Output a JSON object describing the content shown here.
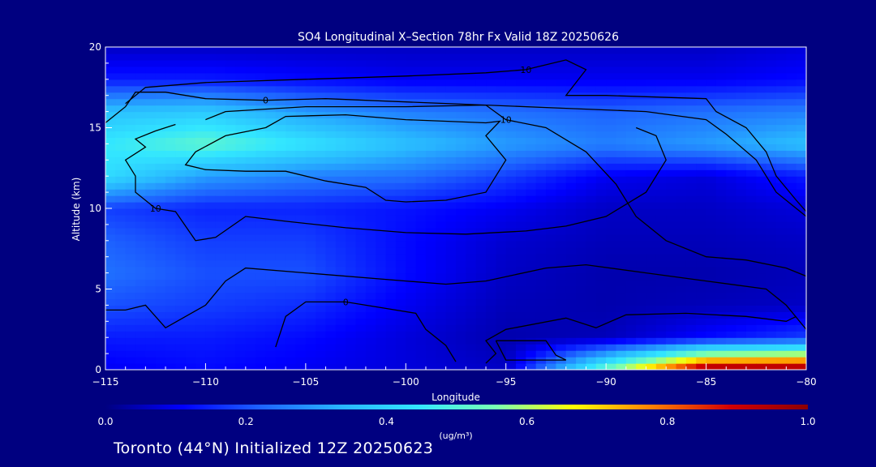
{
  "chart_data": {
    "type": "heatmap",
    "title": "SO4 Longitudinal X–Section 78hr  Fx Valid 18Z 20250626",
    "xlabel": "Longitude",
    "ylabel": "Altitude (km)",
    "xlim": [
      -115,
      -80
    ],
    "ylim": [
      0,
      20
    ],
    "x_ticks": [
      -115,
      -110,
      -105,
      -100,
      -95,
      -90,
      -85,
      -80
    ],
    "x_tick_labels": [
      "−115",
      "−110",
      "−105",
      "−100",
      "−95",
      "−90",
      "−85",
      "−80"
    ],
    "y_ticks": [
      0,
      5,
      10,
      15,
      20
    ],
    "y_tick_labels": [
      "0",
      "5",
      "10",
      "15",
      "20"
    ],
    "colorbar": {
      "min": 0.0,
      "max": 1.0,
      "ticks": [
        0.0,
        0.2,
        0.4,
        0.6,
        0.8,
        1.0
      ],
      "tick_labels": [
        "0.0",
        "0.2",
        "0.4",
        "0.6",
        "0.8",
        "1.0"
      ],
      "unit_label": "(ug/m³)",
      "colors": [
        "#000080",
        "#0000ff",
        "#1e64ff",
        "#28b4ff",
        "#32e6ff",
        "#78ffb4",
        "#ffff00",
        "#ff8000",
        "#d20000",
        "#8c0000"
      ]
    },
    "field_longitudes": [
      -115,
      -110,
      -105,
      -100,
      -95,
      -90,
      -85,
      -80
    ],
    "field_altitudes": [
      0,
      2,
      4,
      6,
      8,
      10,
      12,
      14,
      16,
      18,
      20
    ],
    "values": [
      [
        0.1,
        0.12,
        0.1,
        0.08,
        0.06,
        0.55,
        1.0,
        1.0
      ],
      [
        0.14,
        0.14,
        0.12,
        0.08,
        0.04,
        0.05,
        0.12,
        0.18
      ],
      [
        0.2,
        0.18,
        0.16,
        0.1,
        0.05,
        0.04,
        0.05,
        0.06
      ],
      [
        0.24,
        0.2,
        0.2,
        0.12,
        0.06,
        0.04,
        0.04,
        0.05
      ],
      [
        0.22,
        0.18,
        0.18,
        0.12,
        0.07,
        0.05,
        0.05,
        0.06
      ],
      [
        0.18,
        0.15,
        0.15,
        0.13,
        0.1,
        0.06,
        0.06,
        0.08
      ],
      [
        0.42,
        0.3,
        0.26,
        0.24,
        0.18,
        0.1,
        0.08,
        0.14
      ],
      [
        0.45,
        0.52,
        0.44,
        0.36,
        0.3,
        0.26,
        0.3,
        0.36
      ],
      [
        0.36,
        0.38,
        0.3,
        0.26,
        0.24,
        0.22,
        0.24,
        0.26
      ],
      [
        0.14,
        0.14,
        0.12,
        0.1,
        0.1,
        0.1,
        0.1,
        0.12
      ],
      [
        0.06,
        0.06,
        0.06,
        0.06,
        0.06,
        0.06,
        0.06,
        0.08
      ]
    ],
    "contours": [
      {
        "label": "10",
        "points": [
          [
            -114,
            16.5
          ],
          [
            -113,
            17.5
          ],
          [
            -110,
            17.8
          ],
          [
            -105,
            18
          ],
          [
            -100,
            18.2
          ],
          [
            -96,
            18.4
          ],
          [
            -94,
            18.6
          ],
          [
            -92,
            19.2
          ],
          [
            -91,
            18.6
          ],
          [
            -92,
            17
          ],
          [
            -90,
            17
          ],
          [
            -85,
            16.8
          ],
          [
            -84.5,
            16
          ],
          [
            -83,
            15
          ],
          [
            -82,
            13.5
          ],
          [
            -81.5,
            12
          ],
          [
            -80.5,
            10.5
          ],
          [
            -80,
            9.8
          ]
        ]
      },
      {
        "label": "0",
        "points": [
          [
            -115,
            15.3
          ],
          [
            -114,
            16.3
          ],
          [
            -113.5,
            17.2
          ],
          [
            -112,
            17.2
          ],
          [
            -110,
            16.8
          ],
          [
            -107,
            16.7
          ],
          [
            -104,
            16.8
          ],
          [
            -100,
            16.6
          ],
          [
            -96,
            16.4
          ],
          [
            -92,
            16.2
          ],
          [
            -88,
            16
          ],
          [
            -85,
            15.5
          ],
          [
            -84,
            14.6
          ],
          [
            -82.5,
            13
          ],
          [
            -81.5,
            11
          ],
          [
            -80,
            9.5
          ]
        ]
      },
      {
        "label": "10",
        "points": [
          [
            -110,
            15.5
          ],
          [
            -109,
            16
          ],
          [
            -105,
            16.3
          ],
          [
            -100,
            16.3
          ],
          [
            -96,
            16.4
          ],
          [
            -95,
            15.5
          ],
          [
            -93,
            15
          ],
          [
            -91,
            13.5
          ],
          [
            -89.5,
            11.5
          ],
          [
            -88.5,
            9.5
          ],
          [
            -87,
            8
          ],
          [
            -85,
            7
          ],
          [
            -83,
            6.8
          ],
          [
            -81,
            6.3
          ],
          [
            -80,
            5.8
          ]
        ]
      },
      {
        "label": "10",
        "points": [
          [
            -111.5,
            15.2
          ],
          [
            -112.5,
            14.8
          ],
          [
            -113.5,
            14.3
          ],
          [
            -113,
            13.8
          ],
          [
            -114,
            13
          ],
          [
            -113.5,
            12
          ],
          [
            -113.5,
            11
          ],
          [
            -112.5,
            10
          ],
          [
            -111.5,
            9.8
          ],
          [
            -110.5,
            8
          ],
          [
            -109.5,
            8.2
          ],
          [
            -108,
            9.5
          ],
          [
            -106,
            9.2
          ],
          [
            -103,
            8.8
          ],
          [
            -100,
            8.5
          ],
          [
            -97,
            8.4
          ],
          [
            -94,
            8.6
          ],
          [
            -92,
            8.9
          ],
          [
            -90,
            9.5
          ],
          [
            -88,
            11
          ],
          [
            -87,
            13
          ],
          [
            -87.5,
            14.5
          ],
          [
            -88.5,
            15
          ]
        ]
      },
      {
        "label": "",
        "points": [
          [
            -107,
            15
          ],
          [
            -106,
            15.7
          ],
          [
            -103,
            15.8
          ],
          [
            -100,
            15.5
          ],
          [
            -96,
            15.3
          ],
          [
            -95.3,
            15.4
          ],
          [
            -96,
            14.5
          ],
          [
            -95,
            13
          ],
          [
            -96,
            11
          ],
          [
            -98,
            10.5
          ],
          [
            -100,
            10.4
          ],
          [
            -101,
            10.5
          ],
          [
            -102,
            11.3
          ],
          [
            -104,
            11.7
          ],
          [
            -106,
            12.3
          ],
          [
            -108,
            12.3
          ],
          [
            -110,
            12.4
          ],
          [
            -111,
            12.7
          ],
          [
            -110.5,
            13.5
          ],
          [
            -109,
            14.5
          ],
          [
            -107,
            15
          ]
        ]
      },
      {
        "label": "",
        "points": [
          [
            -115,
            3.7
          ],
          [
            -114,
            3.7
          ],
          [
            -113,
            4
          ],
          [
            -112,
            2.6
          ],
          [
            -110,
            4
          ],
          [
            -109,
            5.5
          ],
          [
            -108,
            6.3
          ],
          [
            -105,
            6
          ],
          [
            -100,
            5.5
          ],
          [
            -98,
            5.3
          ],
          [
            -96,
            5.5
          ],
          [
            -93,
            6.3
          ],
          [
            -91,
            6.5
          ],
          [
            -88,
            6
          ],
          [
            -85,
            5.5
          ],
          [
            -82,
            5
          ],
          [
            -81,
            4
          ],
          [
            -80,
            2.5
          ]
        ]
      },
      {
        "label": "0",
        "points": [
          [
            -106.5,
            1.4
          ],
          [
            -106,
            3.3
          ],
          [
            -105,
            4.2
          ],
          [
            -103,
            4.2
          ],
          [
            -101,
            3.8
          ],
          [
            -99.5,
            3.5
          ],
          [
            -99,
            2.5
          ],
          [
            -98,
            1.5
          ],
          [
            -97.5,
            0.5
          ]
        ]
      },
      {
        "label": "",
        "points": [
          [
            -96,
            0.4
          ],
          [
            -95.5,
            1
          ],
          [
            -96,
            1.8
          ],
          [
            -95,
            2.5
          ],
          [
            -92,
            3.2
          ],
          [
            -90.5,
            2.6
          ],
          [
            -89,
            3.4
          ],
          [
            -86,
            3.5
          ],
          [
            -83,
            3.3
          ],
          [
            -81,
            3.0
          ],
          [
            -80.5,
            3.3
          ]
        ]
      },
      {
        "label": "",
        "points": [
          [
            -95.5,
            1.8
          ],
          [
            -93,
            1.8
          ],
          [
            -92.5,
            0.9
          ],
          [
            -92,
            0.6
          ],
          [
            -95,
            0.6
          ],
          [
            -95.5,
            1.8
          ]
        ]
      }
    ],
    "annotations": [
      "Toronto (44°N) Initialized 12Z 20250623"
    ]
  }
}
